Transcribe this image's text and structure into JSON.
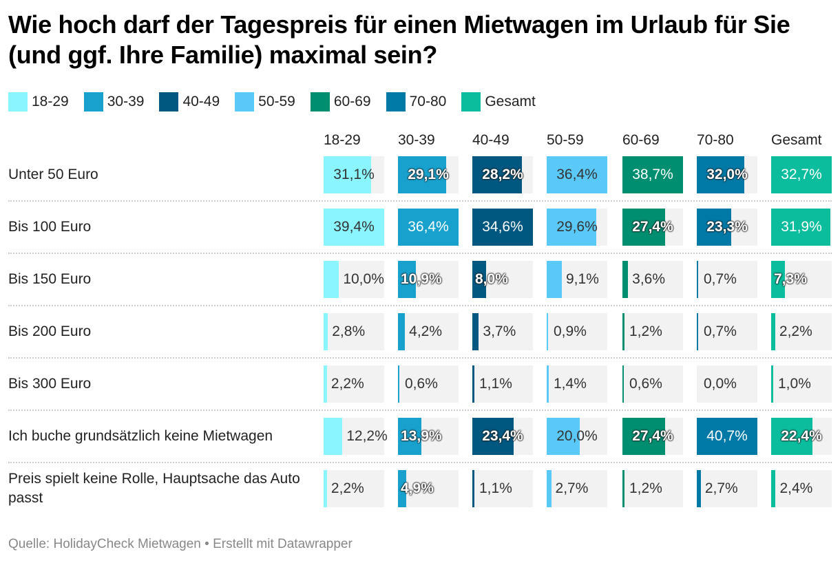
{
  "title": "Wie hoch darf der Tagespreis für einen Mietwagen im Urlaub für Sie (und ggf. Ihre Familie) maximal sein?",
  "footer": "Quelle: HolidayCheck Mietwagen • Erstellt mit Datawrapper",
  "chart_data": {
    "type": "table",
    "title": "Wie hoch darf der Tagespreis für einen Mietwagen im Urlaub für Sie (und ggf. Ihre Familie) maximal sein?",
    "legend_placement": "top-left",
    "columns": [
      {
        "name": "18-29",
        "color": "#8af5fd"
      },
      {
        "name": "30-39",
        "color": "#18a1cd"
      },
      {
        "name": "40-49",
        "color": "#00577f"
      },
      {
        "name": "50-59",
        "color": "#5ac9f7"
      },
      {
        "name": "60-69",
        "color": "#008e70"
      },
      {
        "name": "70-80",
        "color": "#0079a6"
      },
      {
        "name": "Gesamt",
        "color": "#0bbc9d"
      }
    ],
    "rows": [
      {
        "label": "Unter 50 Euro",
        "values": [
          31.1,
          29.1,
          28.2,
          36.4,
          38.7,
          32.0,
          32.7
        ],
        "labels": [
          "31,1%",
          "29,1%",
          "28,2%",
          "36,4%",
          "38,7%",
          "32,0%",
          "32,7%"
        ]
      },
      {
        "label": "Bis 100 Euro",
        "values": [
          39.4,
          36.4,
          34.6,
          29.6,
          27.4,
          23.3,
          31.9
        ],
        "labels": [
          "39,4%",
          "36,4%",
          "34,6%",
          "29,6%",
          "27,4%",
          "23,3%",
          "31,9%"
        ]
      },
      {
        "label": "Bis 150 Euro",
        "values": [
          10.0,
          10.9,
          8.0,
          9.1,
          3.6,
          0.7,
          7.3
        ],
        "labels": [
          "10,0%",
          "10,9%",
          "8,0%",
          "9,1%",
          "3,6%",
          "0,7%",
          "7,3%"
        ]
      },
      {
        "label": "Bis 200 Euro",
        "values": [
          2.8,
          4.2,
          3.7,
          0.9,
          1.2,
          0.7,
          2.2
        ],
        "labels": [
          "2,8%",
          "4,2%",
          "3,7%",
          "0,9%",
          "1,2%",
          "0,7%",
          "2,2%"
        ]
      },
      {
        "label": "Bis 300 Euro",
        "values": [
          2.2,
          0.6,
          1.1,
          1.4,
          0.6,
          0.0,
          1.0
        ],
        "labels": [
          "2,2%",
          "0,6%",
          "1,1%",
          "1,4%",
          "0,6%",
          "0,0%",
          "1,0%"
        ]
      },
      {
        "label": "Ich buche grundsätzlich keine Mietwagen",
        "values": [
          12.2,
          13.9,
          23.4,
          20.0,
          27.4,
          40.7,
          22.4
        ],
        "labels": [
          "12,2%",
          "13,9%",
          "23,4%",
          "20,0%",
          "27,4%",
          "40,7%",
          "22,4%"
        ]
      },
      {
        "label": "Preis spielt keine Rolle, Hauptsache das Auto passt",
        "values": [
          2.2,
          4.9,
          1.1,
          2.7,
          1.2,
          2.7,
          2.4
        ],
        "labels": [
          "2,2%",
          "4,9%",
          "1,1%",
          "2,7%",
          "1,2%",
          "2,7%",
          "2,4%"
        ]
      }
    ]
  }
}
